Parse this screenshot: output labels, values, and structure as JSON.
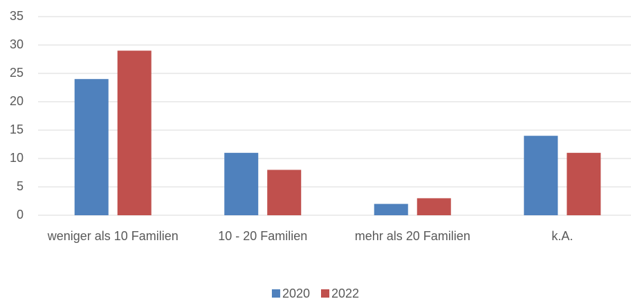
{
  "chart_data": {
    "type": "bar",
    "categories": [
      "weniger als 10 Familien",
      "10 - 20 Familien",
      "mehr als 20 Familien",
      "k.A."
    ],
    "series": [
      {
        "name": "2020",
        "color": "#4f81bd",
        "values": [
          24,
          11,
          2,
          14
        ]
      },
      {
        "name": "2022",
        "color": "#c0504d",
        "values": [
          29,
          8,
          3,
          11
        ]
      }
    ],
    "ylim": [
      0,
      35
    ],
    "yticks": [
      0,
      5,
      10,
      15,
      20,
      25,
      30,
      35
    ],
    "grid": true,
    "legend": "bottom"
  }
}
